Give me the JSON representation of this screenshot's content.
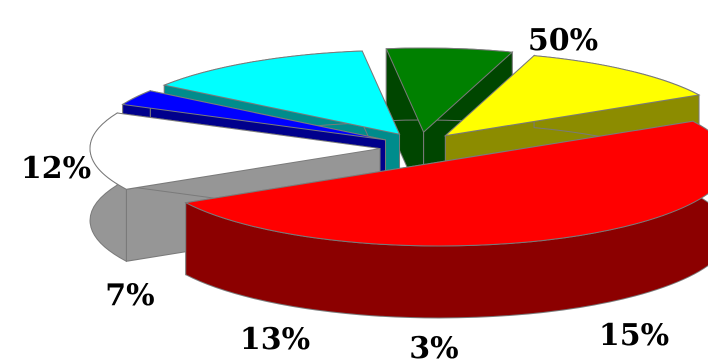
{
  "chart_data": {
    "type": "pie",
    "style": "3d-exploded",
    "title": "",
    "legend": "none",
    "slices": [
      {
        "label": "50%",
        "value": 50,
        "color": "#ff0000"
      },
      {
        "label": "15%",
        "value": 15,
        "color": "#ffffff"
      },
      {
        "label": "3%",
        "value": 3,
        "color": "#0000ff"
      },
      {
        "label": "13%",
        "value": 13,
        "color": "#00ffff"
      },
      {
        "label": "7%",
        "value": 7,
        "color": "#008000"
      },
      {
        "label": "12%",
        "value": 12,
        "color": "#ffff00"
      }
    ]
  }
}
